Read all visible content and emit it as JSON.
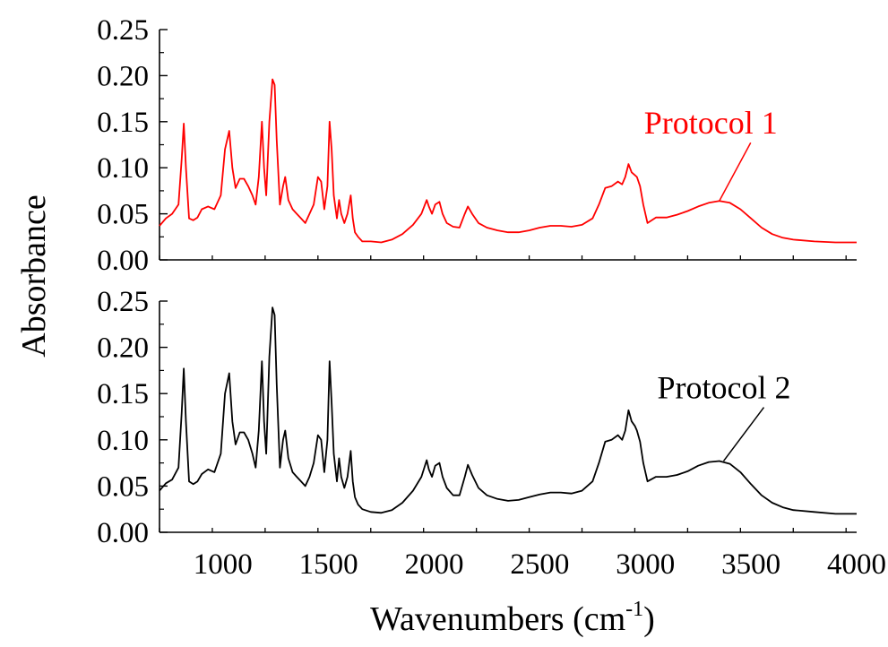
{
  "chart_data": {
    "type": "line",
    "xlabel": "Wavenumbers (cm",
    "xlabel_sup": "-1",
    "xlabel_end": ")",
    "ylabel": "Absorbance",
    "xlim": [
      700,
      4000
    ],
    "x_ticks": [
      1000,
      1500,
      2000,
      2500,
      3000,
      3500,
      4000
    ],
    "x_tick_labels": [
      "1000",
      "1500",
      "2000",
      "2500",
      "3000",
      "3500",
      "4000"
    ],
    "grid": false,
    "panels": [
      {
        "ylim": [
          0,
          0.25
        ],
        "y_ticks": [
          0,
          0.05,
          0.1,
          0.15,
          0.2,
          0.25
        ],
        "y_tick_labels": [
          "0.00",
          "0.05",
          "0.10",
          "0.15",
          "0.20",
          "0.25"
        ],
        "series": [
          {
            "name": "Protocol 1",
            "color": "#ff0000",
            "label_x": 3350,
            "label_y": 0.064,
            "x": [
              700,
              730,
              760,
              790,
              805,
              815,
              825,
              840,
              860,
              880,
              900,
              930,
              960,
              990,
              1010,
              1030,
              1045,
              1060,
              1080,
              1100,
              1120,
              1140,
              1155,
              1170,
              1185,
              1195,
              1205,
              1220,
              1235,
              1245,
              1255,
              1270,
              1285,
              1295,
              1310,
              1330,
              1350,
              1370,
              1390,
              1410,
              1430,
              1450,
              1465,
              1480,
              1495,
              1505,
              1515,
              1525,
              1540,
              1550,
              1560,
              1575,
              1590,
              1605,
              1615,
              1625,
              1640,
              1660,
              1700,
              1750,
              1800,
              1850,
              1900,
              1940,
              1965,
              1975,
              1990,
              2005,
              2025,
              2040,
              2060,
              2090,
              2120,
              2145,
              2160,
              2180,
              2210,
              2250,
              2300,
              2350,
              2400,
              2450,
              2500,
              2550,
              2600,
              2650,
              2700,
              2750,
              2780,
              2810,
              2840,
              2870,
              2890,
              2905,
              2920,
              2935,
              2950,
              2960,
              2975,
              2990,
              3010,
              3050,
              3100,
              3150,
              3200,
              3250,
              3300,
              3350,
              3400,
              3450,
              3500,
              3550,
              3600,
              3650,
              3700,
              3800,
              3900,
              4000
            ],
            "y": [
              0.037,
              0.045,
              0.05,
              0.06,
              0.11,
              0.148,
              0.1,
              0.045,
              0.043,
              0.046,
              0.055,
              0.058,
              0.055,
              0.07,
              0.12,
              0.14,
              0.1,
              0.078,
              0.088,
              0.088,
              0.08,
              0.07,
              0.06,
              0.09,
              0.15,
              0.1,
              0.07,
              0.15,
              0.196,
              0.19,
              0.13,
              0.06,
              0.08,
              0.09,
              0.065,
              0.055,
              0.05,
              0.045,
              0.04,
              0.05,
              0.06,
              0.09,
              0.085,
              0.055,
              0.08,
              0.15,
              0.12,
              0.07,
              0.045,
              0.065,
              0.05,
              0.04,
              0.05,
              0.07,
              0.045,
              0.03,
              0.025,
              0.02,
              0.02,
              0.019,
              0.022,
              0.028,
              0.038,
              0.05,
              0.065,
              0.058,
              0.05,
              0.06,
              0.063,
              0.05,
              0.04,
              0.036,
              0.035,
              0.05,
              0.058,
              0.05,
              0.04,
              0.035,
              0.032,
              0.03,
              0.03,
              0.032,
              0.035,
              0.037,
              0.037,
              0.036,
              0.038,
              0.045,
              0.06,
              0.078,
              0.08,
              0.085,
              0.082,
              0.09,
              0.104,
              0.095,
              0.092,
              0.09,
              0.08,
              0.06,
              0.04,
              0.046,
              0.046,
              0.049,
              0.053,
              0.058,
              0.062,
              0.064,
              0.062,
              0.055,
              0.045,
              0.035,
              0.028,
              0.024,
              0.022,
              0.02,
              0.019,
              0.019
            ]
          }
        ]
      },
      {
        "ylim": [
          0,
          0.25
        ],
        "y_ticks": [
          0,
          0.05,
          0.1,
          0.15,
          0.2,
          0.25
        ],
        "y_tick_labels": [
          "0.00",
          "0.05",
          "0.10",
          "0.15",
          "0.20",
          "0.25"
        ],
        "series": [
          {
            "name": "Protocol 2",
            "color": "#000000",
            "label_x": 3370,
            "label_y": 0.077,
            "x": [
              700,
              730,
              760,
              790,
              805,
              815,
              825,
              840,
              860,
              880,
              900,
              930,
              960,
              990,
              1010,
              1030,
              1045,
              1060,
              1080,
              1100,
              1120,
              1140,
              1155,
              1170,
              1185,
              1195,
              1205,
              1220,
              1235,
              1245,
              1255,
              1270,
              1285,
              1295,
              1310,
              1330,
              1350,
              1370,
              1390,
              1410,
              1430,
              1450,
              1465,
              1480,
              1495,
              1505,
              1515,
              1525,
              1540,
              1550,
              1560,
              1575,
              1590,
              1605,
              1615,
              1625,
              1640,
              1660,
              1700,
              1750,
              1800,
              1850,
              1900,
              1940,
              1965,
              1975,
              1990,
              2005,
              2025,
              2040,
              2060,
              2090,
              2120,
              2145,
              2160,
              2180,
              2210,
              2250,
              2300,
              2350,
              2400,
              2450,
              2500,
              2550,
              2600,
              2650,
              2700,
              2750,
              2780,
              2810,
              2840,
              2870,
              2890,
              2905,
              2920,
              2935,
              2950,
              2960,
              2975,
              2990,
              3010,
              3050,
              3100,
              3150,
              3200,
              3250,
              3300,
              3350,
              3400,
              3450,
              3500,
              3550,
              3600,
              3650,
              3700,
              3800,
              3900,
              4000
            ],
            "y": [
              0.045,
              0.053,
              0.057,
              0.07,
              0.13,
              0.177,
              0.12,
              0.055,
              0.052,
              0.055,
              0.063,
              0.068,
              0.065,
              0.085,
              0.15,
              0.172,
              0.12,
              0.095,
              0.108,
              0.108,
              0.1,
              0.085,
              0.07,
              0.11,
              0.185,
              0.12,
              0.085,
              0.19,
              0.243,
              0.235,
              0.16,
              0.07,
              0.1,
              0.11,
              0.08,
              0.065,
              0.06,
              0.055,
              0.05,
              0.06,
              0.075,
              0.105,
              0.1,
              0.065,
              0.1,
              0.185,
              0.14,
              0.085,
              0.055,
              0.08,
              0.06,
              0.048,
              0.06,
              0.088,
              0.055,
              0.038,
              0.03,
              0.025,
              0.022,
              0.021,
              0.024,
              0.032,
              0.045,
              0.06,
              0.078,
              0.068,
              0.06,
              0.072,
              0.075,
              0.06,
              0.048,
              0.04,
              0.04,
              0.06,
              0.073,
              0.062,
              0.048,
              0.04,
              0.036,
              0.034,
              0.035,
              0.038,
              0.041,
              0.043,
              0.043,
              0.042,
              0.045,
              0.055,
              0.075,
              0.098,
              0.1,
              0.105,
              0.1,
              0.11,
              0.132,
              0.12,
              0.115,
              0.11,
              0.098,
              0.075,
              0.055,
              0.06,
              0.06,
              0.062,
              0.066,
              0.072,
              0.076,
              0.077,
              0.074,
              0.065,
              0.052,
              0.04,
              0.032,
              0.027,
              0.024,
              0.022,
              0.02,
              0.02
            ]
          }
        ]
      }
    ]
  }
}
